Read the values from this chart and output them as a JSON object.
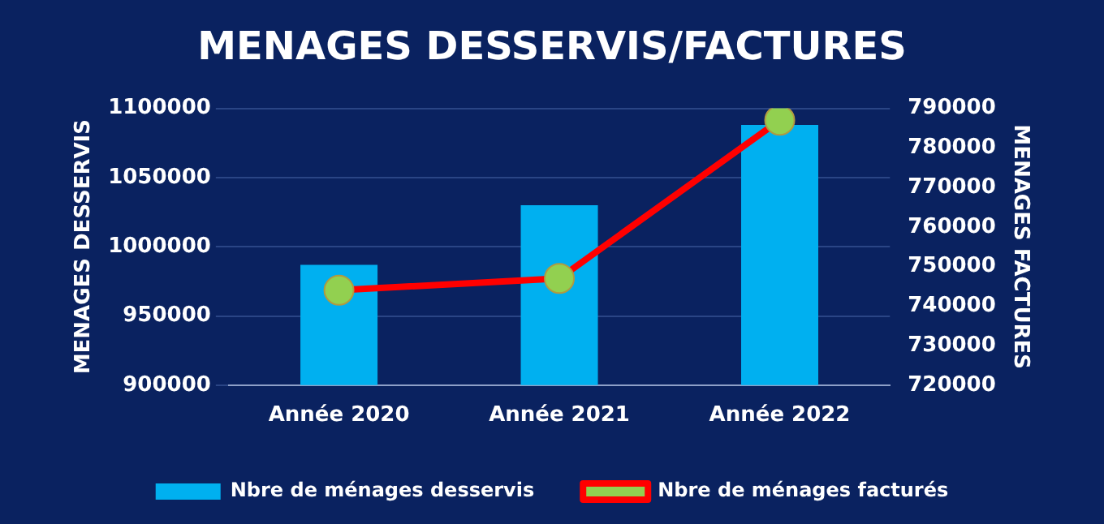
{
  "chart_data": {
    "type": "bar",
    "title": "MENAGES DESSERVIS/FACTURES",
    "ylabel": "MENAGES DESSERVIS",
    "y2label": "MENAGES FACTURES",
    "categories": [
      "Année 2020",
      "Année 2021",
      "Année 2022"
    ],
    "series": [
      {
        "name": "Nbre de ménages desservis",
        "color": "#00b0f0",
        "values": [
          987000,
          1030000,
          1088000
        ]
      },
      {
        "name": "Nbre de ménages facturés",
        "type": "line",
        "axis": "y2",
        "color": "#ff0000",
        "marker": "circle",
        "values": [
          744000,
          747000,
          787000
        ]
      }
    ],
    "ylim": [
      900000,
      1100000
    ],
    "yticks": [
      900000,
      950000,
      1000000,
      1050000,
      1100000
    ],
    "y2lim": [
      720000,
      790000
    ],
    "y2ticks": [
      720000,
      730000,
      740000,
      750000,
      760000,
      770000,
      780000,
      790000
    ],
    "grid": "y",
    "legend": "bottom"
  }
}
